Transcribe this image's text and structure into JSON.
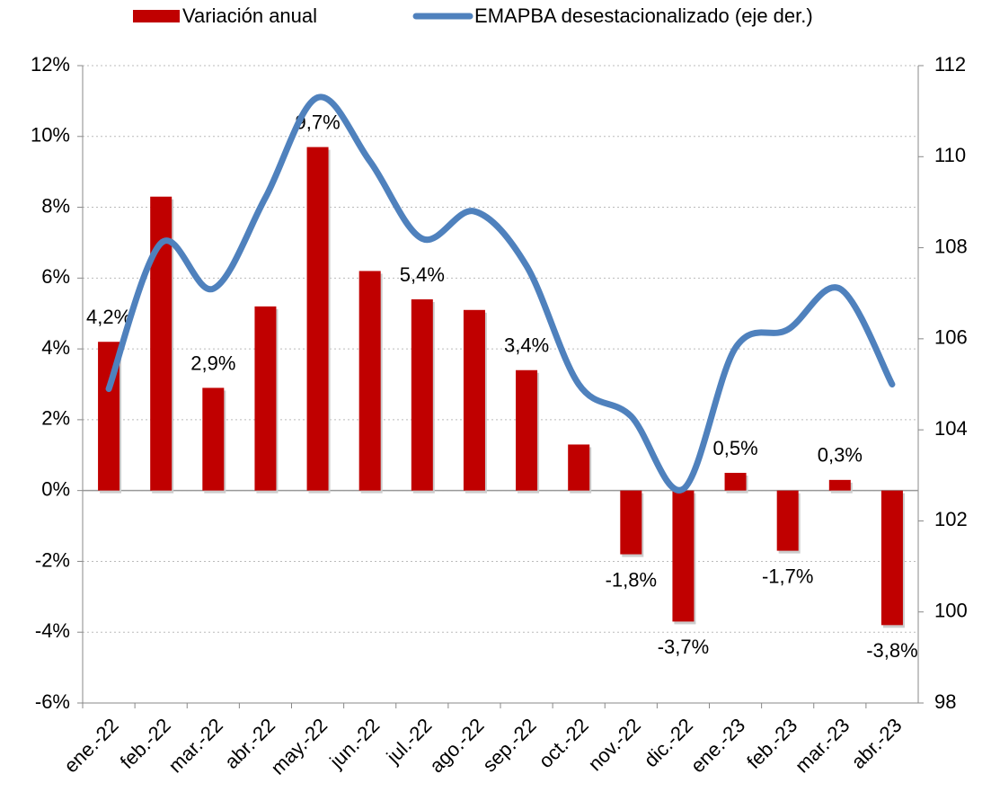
{
  "chart_data": {
    "type": "bar_line",
    "categories": [
      "ene.-22",
      "feb.-22",
      "mar.-22",
      "abr.-22",
      "may.-22",
      "jun.-22",
      "jul.-22",
      "ago.-22",
      "sep.-22",
      "oct.-22",
      "nov.-22",
      "dic.-22",
      "ene.-23",
      "feb.-23",
      "mar.-23",
      "abr.-23"
    ],
    "series": [
      {
        "name": "Variación anual",
        "color": "#c00000",
        "type": "bar",
        "values": [
          4.2,
          8.3,
          2.9,
          5.2,
          9.7,
          6.2,
          5.4,
          5.1,
          3.4,
          1.3,
          -1.8,
          -3.7,
          0.5,
          -1.7,
          0.3,
          -3.8
        ],
        "value_labels": [
          "4,2%",
          null,
          "2,9%",
          null,
          "9,7%",
          null,
          "5,4%",
          null,
          "3,4%",
          null,
          "-1,8%",
          "-3,7%",
          "0,5%",
          "-1,7%",
          "0,3%",
          "-3,8%"
        ]
      },
      {
        "name": "EMAPBA desestacionalizado (eje der.)",
        "color": "#4f81bd",
        "type": "line",
        "axis": "y2",
        "values": [
          104.9,
          108.1,
          107.1,
          109.1,
          111.3,
          109.9,
          108.2,
          108.8,
          107.6,
          105.0,
          104.3,
          102.7,
          105.8,
          106.2,
          107.1,
          105.0
        ]
      }
    ],
    "ylim": [
      -6,
      12
    ],
    "yticks": [
      {
        "value": -6,
        "label": "-6%"
      },
      {
        "value": -4,
        "label": "-4%"
      },
      {
        "value": -2,
        "label": "-2%"
      },
      {
        "value": 0,
        "label": "0%"
      },
      {
        "value": 2,
        "label": "2%"
      },
      {
        "value": 4,
        "label": "4%"
      },
      {
        "value": 6,
        "label": "6%"
      },
      {
        "value": 8,
        "label": "8%"
      },
      {
        "value": 10,
        "label": "10%"
      },
      {
        "value": 12,
        "label": "12%"
      }
    ],
    "y2lim": [
      98,
      112
    ],
    "y2ticks": [
      98,
      100,
      102,
      104,
      106,
      108,
      110,
      112
    ],
    "grid": true,
    "legend": "top"
  }
}
